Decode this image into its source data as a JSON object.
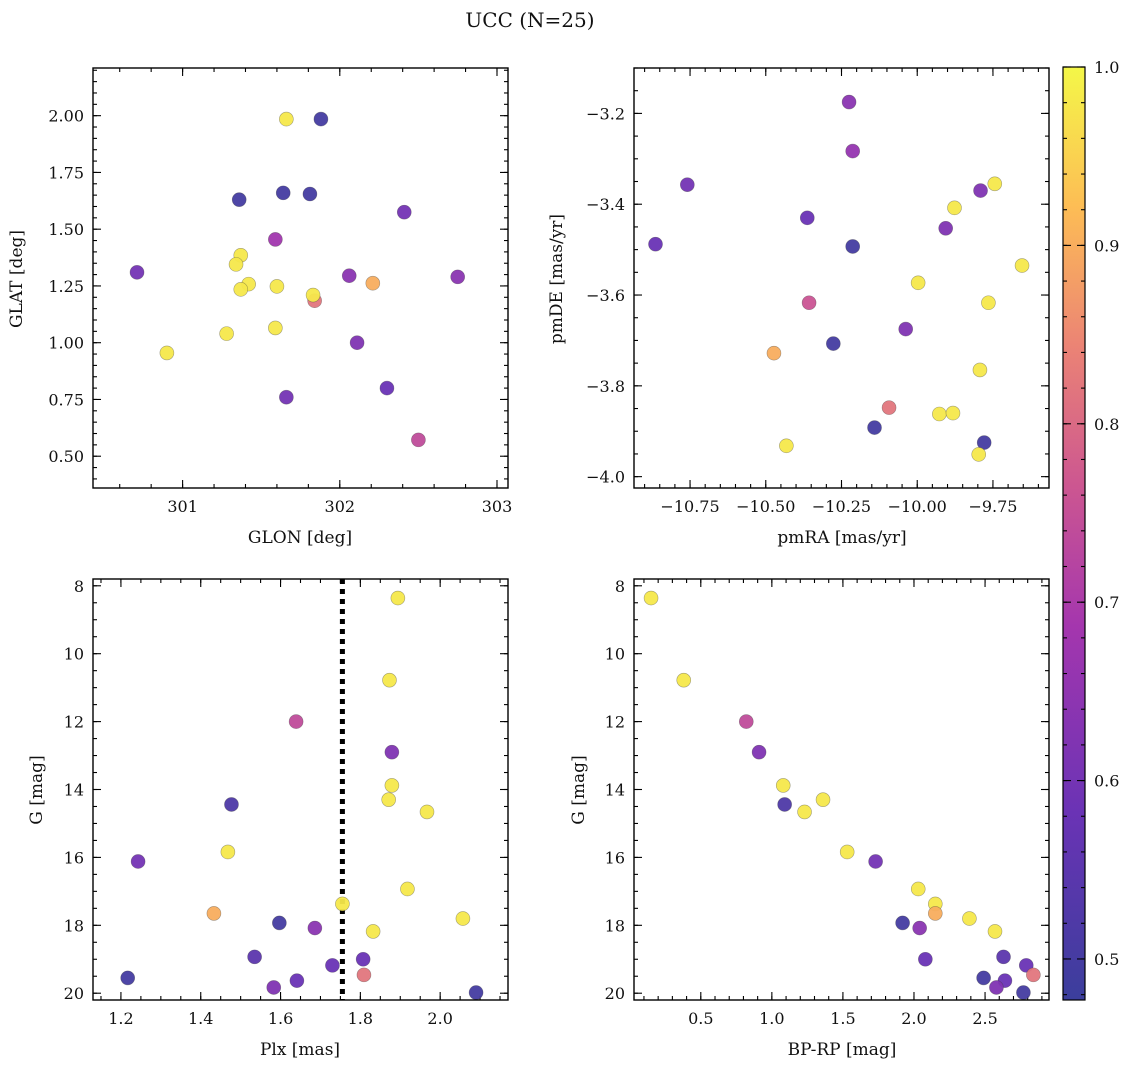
{
  "figure": {
    "suptitle": "UCC (N=25)"
  },
  "colorbar": {
    "vmin": 0.477,
    "vmax": 1.0,
    "ticks": [
      0.5,
      0.6,
      0.7,
      0.8,
      0.9,
      1.0
    ],
    "tick_labels": [
      "0.5",
      "0.6",
      "0.7",
      "0.8",
      "0.9",
      "1.0"
    ],
    "colormap": "plasma"
  },
  "chart_data": [
    {
      "type": "scatter",
      "xlabel": "GLON [deg]",
      "ylabel": "GLAT [deg]",
      "xlim": [
        300.43,
        303.07
      ],
      "ylim": [
        0.36,
        2.21
      ],
      "xticks": [
        301,
        302,
        303
      ],
      "xtick_labels": [
        "301",
        "302",
        "303"
      ],
      "xminor": 0.2,
      "yticks": [
        0.5,
        0.75,
        1.0,
        1.25,
        1.5,
        1.75,
        2.0
      ],
      "ytick_labels": [
        "0.50",
        "0.75",
        "1.00",
        "1.25",
        "1.50",
        "1.75",
        "2.00"
      ],
      "yminor": 0.05,
      "points": [
        {
          "x": 301.66,
          "y": 1.985,
          "c": 0.98
        },
        {
          "x": 301.88,
          "y": 1.985,
          "c": 0.5
        },
        {
          "x": 301.64,
          "y": 1.66,
          "c": 0.5
        },
        {
          "x": 301.81,
          "y": 1.655,
          "c": 0.5
        },
        {
          "x": 301.36,
          "y": 1.63,
          "c": 0.5
        },
        {
          "x": 302.41,
          "y": 1.575,
          "c": 0.6
        },
        {
          "x": 301.59,
          "y": 1.455,
          "c": 0.68
        },
        {
          "x": 301.37,
          "y": 1.385,
          "c": 0.98
        },
        {
          "x": 301.34,
          "y": 1.345,
          "c": 0.98
        },
        {
          "x": 300.71,
          "y": 1.31,
          "c": 0.6
        },
        {
          "x": 302.06,
          "y": 1.295,
          "c": 0.64
        },
        {
          "x": 302.75,
          "y": 1.29,
          "c": 0.64
        },
        {
          "x": 302.21,
          "y": 1.262,
          "c": 0.9
        },
        {
          "x": 301.42,
          "y": 1.258,
          "c": 0.98
        },
        {
          "x": 301.6,
          "y": 1.248,
          "c": 0.98
        },
        {
          "x": 301.37,
          "y": 1.235,
          "c": 0.98
        },
        {
          "x": 301.84,
          "y": 1.185,
          "c": 0.82
        },
        {
          "x": 301.83,
          "y": 1.21,
          "c": 0.98
        },
        {
          "x": 301.59,
          "y": 1.065,
          "c": 0.98
        },
        {
          "x": 301.28,
          "y": 1.04,
          "c": 0.98
        },
        {
          "x": 302.11,
          "y": 1.0,
          "c": 0.62
        },
        {
          "x": 300.9,
          "y": 0.955,
          "c": 0.98
        },
        {
          "x": 302.3,
          "y": 0.8,
          "c": 0.58
        },
        {
          "x": 301.66,
          "y": 0.76,
          "c": 0.6
        },
        {
          "x": 302.5,
          "y": 0.572,
          "c": 0.74
        }
      ]
    },
    {
      "type": "scatter",
      "xlabel": "pmRA [mas/yr]",
      "ylabel": "pmDE [mas/yr]",
      "xlim": [
        -10.935,
        -9.565
      ],
      "ylim": [
        -4.025,
        -3.1
      ],
      "xticks": [
        -10.75,
        -10.5,
        -10.25,
        -10.0,
        -9.75
      ],
      "xtick_labels": [
        "−10.75",
        "−10.50",
        "−10.25",
        "−10.00",
        "−9.75"
      ],
      "xminor": 0.05,
      "yticks": [
        -4.0,
        -3.8,
        -3.6,
        -3.4,
        -3.2
      ],
      "ytick_labels": [
        "−4.0",
        "−3.8",
        "−3.6",
        "−3.4",
        "−3.2"
      ],
      "yminor": 0.05,
      "points": [
        {
          "x": -10.225,
          "y": -3.175,
          "c": 0.64
        },
        {
          "x": -10.213,
          "y": -3.283,
          "c": 0.66
        },
        {
          "x": -10.759,
          "y": -3.357,
          "c": 0.6
        },
        {
          "x": -9.744,
          "y": -3.355,
          "c": 0.98
        },
        {
          "x": -9.791,
          "y": -3.37,
          "c": 0.62
        },
        {
          "x": -9.877,
          "y": -3.408,
          "c": 0.98
        },
        {
          "x": -10.363,
          "y": -3.43,
          "c": 0.58
        },
        {
          "x": -9.906,
          "y": -3.453,
          "c": 0.62
        },
        {
          "x": -10.864,
          "y": -3.488,
          "c": 0.58
        },
        {
          "x": -10.213,
          "y": -3.493,
          "c": 0.5
        },
        {
          "x": -9.654,
          "y": -3.535,
          "c": 0.98
        },
        {
          "x": -9.997,
          "y": -3.573,
          "c": 0.98
        },
        {
          "x": -9.765,
          "y": -3.617,
          "c": 0.98
        },
        {
          "x": -10.357,
          "y": -3.617,
          "c": 0.76
        },
        {
          "x": -10.038,
          "y": -3.675,
          "c": 0.62
        },
        {
          "x": -10.277,
          "y": -3.707,
          "c": 0.5
        },
        {
          "x": -10.473,
          "y": -3.728,
          "c": 0.9
        },
        {
          "x": -9.793,
          "y": -3.765,
          "c": 0.98
        },
        {
          "x": -10.093,
          "y": -3.848,
          "c": 0.82
        },
        {
          "x": -9.927,
          "y": -3.862,
          "c": 0.98
        },
        {
          "x": -9.882,
          "y": -3.86,
          "c": 0.98
        },
        {
          "x": -10.141,
          "y": -3.892,
          "c": 0.5
        },
        {
          "x": -9.779,
          "y": -3.925,
          "c": 0.5
        },
        {
          "x": -10.432,
          "y": -3.932,
          "c": 0.98
        },
        {
          "x": -9.797,
          "y": -3.951,
          "c": 0.98
        }
      ]
    },
    {
      "type": "scatter",
      "xlabel": "Plx [mas]",
      "ylabel": "G [mag]",
      "xlim": [
        1.13,
        2.17
      ],
      "ylim": [
        20.2,
        7.8
      ],
      "y_inverted": true,
      "xticks": [
        1.2,
        1.4,
        1.6,
        1.8,
        2.0
      ],
      "xtick_labels": [
        "1.2",
        "1.4",
        "1.6",
        "1.8",
        "2.0"
      ],
      "xminor": 0.05,
      "yticks": [
        8,
        10,
        12,
        14,
        16,
        18,
        20
      ],
      "ytick_labels": [
        "8",
        "10",
        "12",
        "14",
        "16",
        "18",
        "20"
      ],
      "yminor": 0.5,
      "vline": {
        "x": 1.755,
        "style": "dotted"
      },
      "points": [
        {
          "x": 1.894,
          "y": 8.36,
          "c": 0.98
        },
        {
          "x": 1.873,
          "y": 10.78,
          "c": 0.98
        },
        {
          "x": 1.639,
          "y": 12.0,
          "c": 0.74
        },
        {
          "x": 1.879,
          "y": 12.9,
          "c": 0.62
        },
        {
          "x": 1.879,
          "y": 13.88,
          "c": 0.98
        },
        {
          "x": 1.871,
          "y": 14.3,
          "c": 0.98
        },
        {
          "x": 1.477,
          "y": 14.44,
          "c": 0.52
        },
        {
          "x": 1.967,
          "y": 14.66,
          "c": 0.98
        },
        {
          "x": 1.468,
          "y": 15.84,
          "c": 0.98
        },
        {
          "x": 1.243,
          "y": 16.12,
          "c": 0.6
        },
        {
          "x": 1.918,
          "y": 16.93,
          "c": 0.98
        },
        {
          "x": 1.755,
          "y": 17.37,
          "c": 0.98
        },
        {
          "x": 1.433,
          "y": 17.65,
          "c": 0.9
        },
        {
          "x": 2.057,
          "y": 17.8,
          "c": 0.98
        },
        {
          "x": 1.597,
          "y": 17.93,
          "c": 0.5
        },
        {
          "x": 1.686,
          "y": 18.08,
          "c": 0.64
        },
        {
          "x": 1.832,
          "y": 18.18,
          "c": 0.98
        },
        {
          "x": 1.535,
          "y": 18.93,
          "c": 0.55
        },
        {
          "x": 1.807,
          "y": 19.0,
          "c": 0.58
        },
        {
          "x": 1.73,
          "y": 19.18,
          "c": 0.58
        },
        {
          "x": 1.809,
          "y": 19.46,
          "c": 0.82
        },
        {
          "x": 1.217,
          "y": 19.55,
          "c": 0.5
        },
        {
          "x": 1.641,
          "y": 19.63,
          "c": 0.58
        },
        {
          "x": 1.583,
          "y": 19.83,
          "c": 0.62
        },
        {
          "x": 2.09,
          "y": 19.98,
          "c": 0.5
        }
      ]
    },
    {
      "type": "scatter",
      "xlabel": "BP-RP [mag]",
      "ylabel": "G [mag]",
      "xlim": [
        0.03,
        2.95
      ],
      "ylim": [
        20.2,
        7.8
      ],
      "y_inverted": true,
      "xticks": [
        0.5,
        1.0,
        1.5,
        2.0,
        2.5
      ],
      "xtick_labels": [
        "0.5",
        "1.0",
        "1.5",
        "2.0",
        "2.5"
      ],
      "xminor": 0.1,
      "yticks": [
        8,
        10,
        12,
        14,
        16,
        18,
        20
      ],
      "ytick_labels": [
        "8",
        "10",
        "12",
        "14",
        "16",
        "18",
        "20"
      ],
      "yminor": 0.5,
      "points": [
        {
          "x": 0.15,
          "y": 8.36,
          "c": 0.98
        },
        {
          "x": 0.38,
          "y": 10.78,
          "c": 0.98
        },
        {
          "x": 0.82,
          "y": 12.0,
          "c": 0.74
        },
        {
          "x": 0.91,
          "y": 12.9,
          "c": 0.62
        },
        {
          "x": 1.08,
          "y": 13.88,
          "c": 0.98
        },
        {
          "x": 1.36,
          "y": 14.3,
          "c": 0.98
        },
        {
          "x": 1.09,
          "y": 14.44,
          "c": 0.52
        },
        {
          "x": 1.23,
          "y": 14.66,
          "c": 0.98
        },
        {
          "x": 1.53,
          "y": 15.84,
          "c": 0.98
        },
        {
          "x": 1.73,
          "y": 16.12,
          "c": 0.6
        },
        {
          "x": 2.03,
          "y": 16.93,
          "c": 0.98
        },
        {
          "x": 2.15,
          "y": 17.37,
          "c": 0.98
        },
        {
          "x": 2.15,
          "y": 17.65,
          "c": 0.9
        },
        {
          "x": 2.39,
          "y": 17.8,
          "c": 0.98
        },
        {
          "x": 1.92,
          "y": 17.93,
          "c": 0.5
        },
        {
          "x": 2.04,
          "y": 18.08,
          "c": 0.64
        },
        {
          "x": 2.57,
          "y": 18.18,
          "c": 0.98
        },
        {
          "x": 2.63,
          "y": 18.93,
          "c": 0.55
        },
        {
          "x": 2.08,
          "y": 19.0,
          "c": 0.58
        },
        {
          "x": 2.79,
          "y": 19.18,
          "c": 0.58
        },
        {
          "x": 2.84,
          "y": 19.46,
          "c": 0.82
        },
        {
          "x": 2.49,
          "y": 19.55,
          "c": 0.5
        },
        {
          "x": 2.64,
          "y": 19.63,
          "c": 0.58
        },
        {
          "x": 2.58,
          "y": 19.83,
          "c": 0.62
        },
        {
          "x": 2.77,
          "y": 19.98,
          "c": 0.5
        }
      ]
    }
  ]
}
